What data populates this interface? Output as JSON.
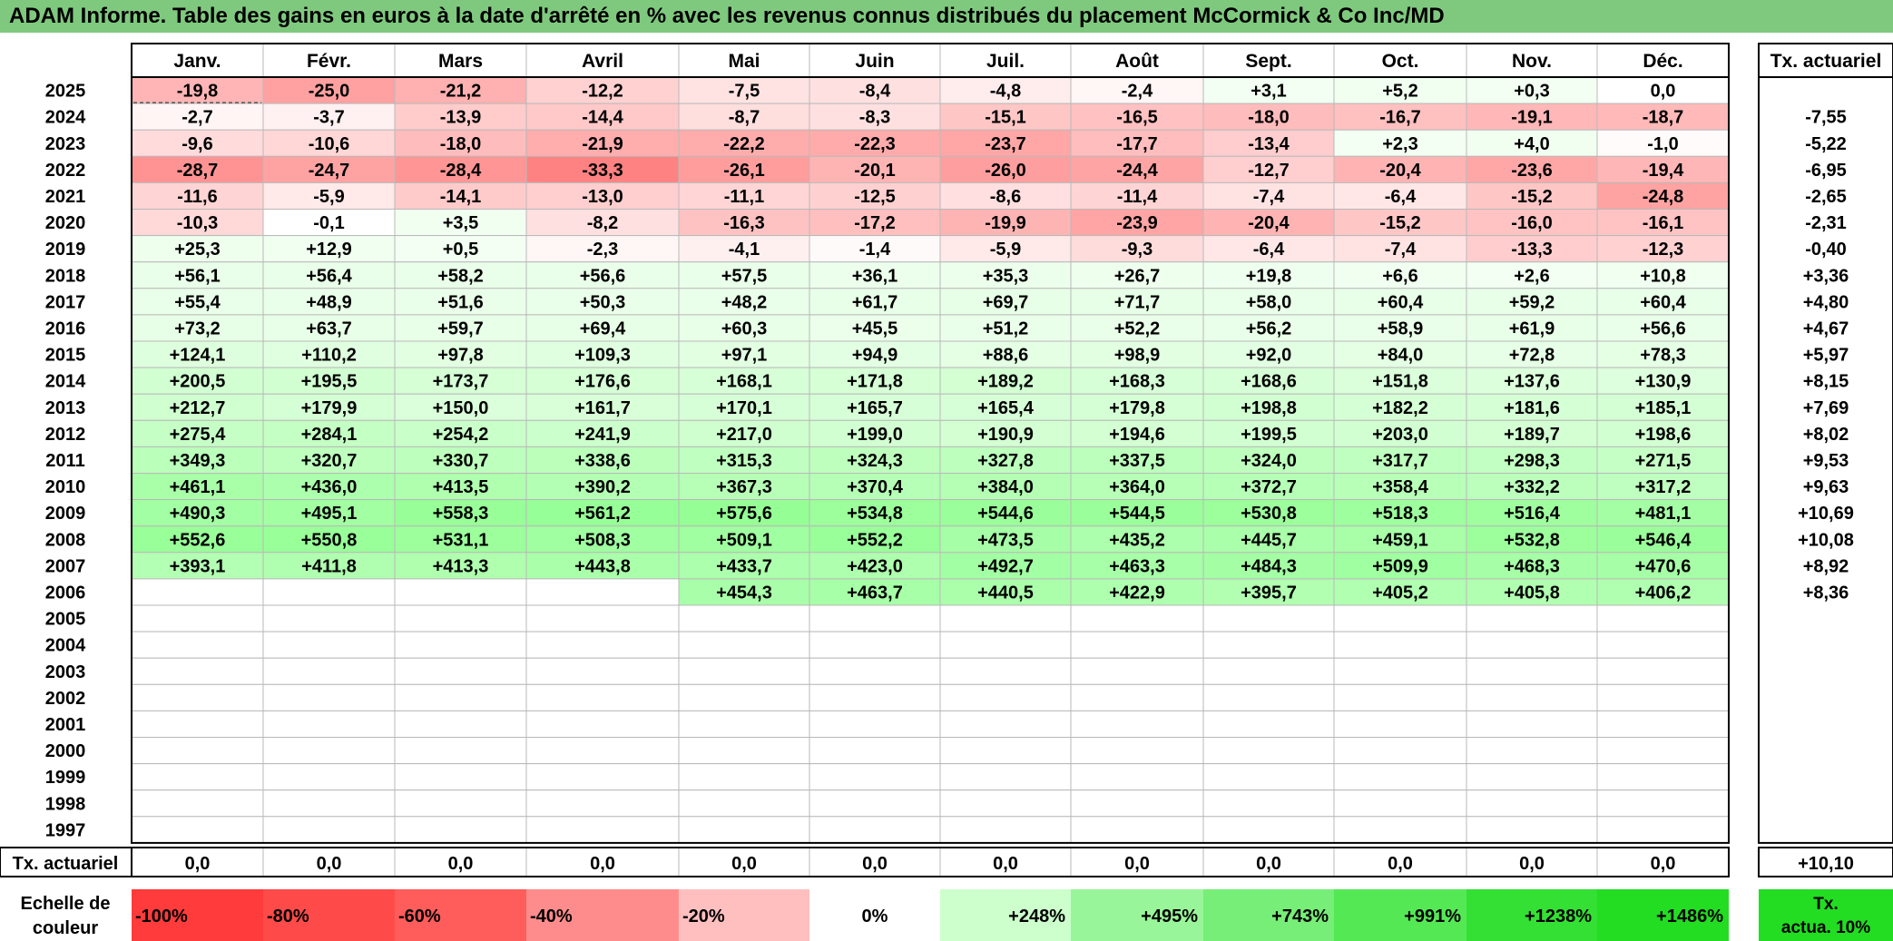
{
  "title": "ADAM Informe. Table des gains en euros à la date d'arrêté en % avec les revenus connus distribués du placement McCormick & Co Inc/MD",
  "chart_data": {
    "type": "table",
    "months": [
      "Janv.",
      "Févr.",
      "Mars",
      "Avril",
      "Mai",
      "Juin",
      "Juil.",
      "Août",
      "Sept.",
      "Oct.",
      "Nov.",
      "Déc."
    ],
    "rate_header": "Tx. actuariel",
    "rows": [
      {
        "year": "2025",
        "values": [
          "-19,8",
          "-25,0",
          "-21,2",
          "-12,2",
          "-7,5",
          "-8,4",
          "-4,8",
          "-2,4",
          "+3,1",
          "+5,2",
          "+0,3",
          "0,0"
        ],
        "rate": ""
      },
      {
        "year": "2024",
        "values": [
          "-2,7",
          "-3,7",
          "-13,9",
          "-14,4",
          "-8,7",
          "-8,3",
          "-15,1",
          "-16,5",
          "-18,0",
          "-16,7",
          "-19,1",
          "-18,7"
        ],
        "rate": "-7,55"
      },
      {
        "year": "2023",
        "values": [
          "-9,6",
          "-10,6",
          "-18,0",
          "-21,9",
          "-22,2",
          "-22,3",
          "-23,7",
          "-17,7",
          "-13,4",
          "+2,3",
          "+4,0",
          "-1,0"
        ],
        "rate": "-5,22"
      },
      {
        "year": "2022",
        "values": [
          "-28,7",
          "-24,7",
          "-28,4",
          "-33,3",
          "-26,1",
          "-20,1",
          "-26,0",
          "-24,4",
          "-12,7",
          "-20,4",
          "-23,6",
          "-19,4"
        ],
        "rate": "-6,95"
      },
      {
        "year": "2021",
        "values": [
          "-11,6",
          "-5,9",
          "-14,1",
          "-13,0",
          "-11,1",
          "-12,5",
          "-8,6",
          "-11,4",
          "-7,4",
          "-6,4",
          "-15,2",
          "-24,8"
        ],
        "rate": "-2,65"
      },
      {
        "year": "2020",
        "values": [
          "-10,3",
          "-0,1",
          "+3,5",
          "-8,2",
          "-16,3",
          "-17,2",
          "-19,9",
          "-23,9",
          "-20,4",
          "-15,2",
          "-16,0",
          "-16,1"
        ],
        "rate": "-2,31"
      },
      {
        "year": "2019",
        "values": [
          "+25,3",
          "+12,9",
          "+0,5",
          "-2,3",
          "-4,1",
          "-1,4",
          "-5,9",
          "-9,3",
          "-6,4",
          "-7,4",
          "-13,3",
          "-12,3"
        ],
        "rate": "-0,40"
      },
      {
        "year": "2018",
        "values": [
          "+56,1",
          "+56,4",
          "+58,2",
          "+56,6",
          "+57,5",
          "+36,1",
          "+35,3",
          "+26,7",
          "+19,8",
          "+6,6",
          "+2,6",
          "+10,8"
        ],
        "rate": "+3,36"
      },
      {
        "year": "2017",
        "values": [
          "+55,4",
          "+48,9",
          "+51,6",
          "+50,3",
          "+48,2",
          "+61,7",
          "+69,7",
          "+71,7",
          "+58,0",
          "+60,4",
          "+59,2",
          "+60,4"
        ],
        "rate": "+4,80"
      },
      {
        "year": "2016",
        "values": [
          "+73,2",
          "+63,7",
          "+59,7",
          "+69,4",
          "+60,3",
          "+45,5",
          "+51,2",
          "+52,2",
          "+56,2",
          "+58,9",
          "+61,9",
          "+56,6"
        ],
        "rate": "+4,67"
      },
      {
        "year": "2015",
        "values": [
          "+124,1",
          "+110,2",
          "+97,8",
          "+109,3",
          "+97,1",
          "+94,9",
          "+88,6",
          "+98,9",
          "+92,0",
          "+84,0",
          "+72,8",
          "+78,3"
        ],
        "rate": "+5,97"
      },
      {
        "year": "2014",
        "values": [
          "+200,5",
          "+195,5",
          "+173,7",
          "+176,6",
          "+168,1",
          "+171,8",
          "+189,2",
          "+168,3",
          "+168,6",
          "+151,8",
          "+137,6",
          "+130,9"
        ],
        "rate": "+8,15"
      },
      {
        "year": "2013",
        "values": [
          "+212,7",
          "+179,9",
          "+150,0",
          "+161,7",
          "+170,1",
          "+165,7",
          "+165,4",
          "+179,8",
          "+198,8",
          "+182,2",
          "+181,6",
          "+185,1"
        ],
        "rate": "+7,69"
      },
      {
        "year": "2012",
        "values": [
          "+275,4",
          "+284,1",
          "+254,2",
          "+241,9",
          "+217,0",
          "+199,0",
          "+190,9",
          "+194,6",
          "+199,5",
          "+203,0",
          "+189,7",
          "+198,6"
        ],
        "rate": "+8,02"
      },
      {
        "year": "2011",
        "values": [
          "+349,3",
          "+320,7",
          "+330,7",
          "+338,6",
          "+315,3",
          "+324,3",
          "+327,8",
          "+337,5",
          "+324,0",
          "+317,7",
          "+298,3",
          "+271,5"
        ],
        "rate": "+9,53"
      },
      {
        "year": "2010",
        "values": [
          "+461,1",
          "+436,0",
          "+413,5",
          "+390,2",
          "+367,3",
          "+370,4",
          "+384,0",
          "+364,0",
          "+372,7",
          "+358,4",
          "+332,2",
          "+317,2"
        ],
        "rate": "+9,63"
      },
      {
        "year": "2009",
        "values": [
          "+490,3",
          "+495,1",
          "+558,3",
          "+561,2",
          "+575,6",
          "+534,8",
          "+544,6",
          "+544,5",
          "+530,8",
          "+518,3",
          "+516,4",
          "+481,1"
        ],
        "rate": "+10,69"
      },
      {
        "year": "2008",
        "values": [
          "+552,6",
          "+550,8",
          "+531,1",
          "+508,3",
          "+509,1",
          "+552,2",
          "+473,5",
          "+435,2",
          "+445,7",
          "+459,1",
          "+532,8",
          "+546,4"
        ],
        "rate": "+10,08"
      },
      {
        "year": "2007",
        "values": [
          "+393,1",
          "+411,8",
          "+413,3",
          "+443,8",
          "+433,7",
          "+423,0",
          "+492,7",
          "+463,3",
          "+484,3",
          "+509,9",
          "+468,3",
          "+470,6"
        ],
        "rate": "+8,92"
      },
      {
        "year": "2006",
        "values": [
          "",
          "",
          "",
          "",
          "+454,3",
          "+463,7",
          "+440,5",
          "+422,9",
          "+395,7",
          "+405,2",
          "+405,8",
          "+406,2"
        ],
        "rate": "+8,36"
      },
      {
        "year": "2005",
        "values": [
          "",
          "",
          "",
          "",
          "",
          "",
          "",
          "",
          "",
          "",
          "",
          ""
        ],
        "rate": ""
      },
      {
        "year": "2004",
        "values": [
          "",
          "",
          "",
          "",
          "",
          "",
          "",
          "",
          "",
          "",
          "",
          ""
        ],
        "rate": ""
      },
      {
        "year": "2003",
        "values": [
          "",
          "",
          "",
          "",
          "",
          "",
          "",
          "",
          "",
          "",
          "",
          ""
        ],
        "rate": ""
      },
      {
        "year": "2002",
        "values": [
          "",
          "",
          "",
          "",
          "",
          "",
          "",
          "",
          "",
          "",
          "",
          ""
        ],
        "rate": ""
      },
      {
        "year": "2001",
        "values": [
          "",
          "",
          "",
          "",
          "",
          "",
          "",
          "",
          "",
          "",
          "",
          ""
        ],
        "rate": ""
      },
      {
        "year": "2000",
        "values": [
          "",
          "",
          "",
          "",
          "",
          "",
          "",
          "",
          "",
          "",
          "",
          ""
        ],
        "rate": ""
      },
      {
        "year": "1999",
        "values": [
          "",
          "",
          "",
          "",
          "",
          "",
          "",
          "",
          "",
          "",
          "",
          ""
        ],
        "rate": ""
      },
      {
        "year": "1998",
        "values": [
          "",
          "",
          "",
          "",
          "",
          "",
          "",
          "",
          "",
          "",
          "",
          ""
        ],
        "rate": ""
      },
      {
        "year": "1997",
        "values": [
          "",
          "",
          "",
          "",
          "",
          "",
          "",
          "",
          "",
          "",
          "",
          ""
        ],
        "rate": ""
      }
    ],
    "footer": {
      "label": "Tx. actuariel",
      "values": [
        "0,0",
        "0,0",
        "0,0",
        "0,0",
        "0,0",
        "0,0",
        "0,0",
        "0,0",
        "0,0",
        "0,0",
        "0,0",
        "0,0"
      ],
      "rate": "+10,10"
    },
    "scale": {
      "label_line1": "Echelle de",
      "label_line2": "couleur",
      "steps": [
        {
          "label": "-100%",
          "color": "#ff3b3b",
          "align": "left"
        },
        {
          "label": "-80%",
          "color": "#ff4a4a",
          "align": "left"
        },
        {
          "label": "-60%",
          "color": "#ff5c5c",
          "align": "left"
        },
        {
          "label": "-40%",
          "color": "#ff8c8c",
          "align": "left"
        },
        {
          "label": "-20%",
          "color": "#ffbfbf",
          "align": "left"
        },
        {
          "label": "0%",
          "color": "#ffffff",
          "align": "center"
        },
        {
          "label": "+248%",
          "color": "#ccffcc",
          "align": "right"
        },
        {
          "label": "+495%",
          "color": "#99f599",
          "align": "right"
        },
        {
          "label": "+743%",
          "color": "#77ee77",
          "align": "right"
        },
        {
          "label": "+991%",
          "color": "#55e855",
          "align": "right"
        },
        {
          "label": "+1238%",
          "color": "#33e033",
          "align": "right"
        },
        {
          "label": "+1486%",
          "color": "#22dd22",
          "align": "right"
        }
      ],
      "rate_line1": "Tx.",
      "rate_line2": "actua. 10%",
      "rate_color": "#22dd22"
    }
  }
}
